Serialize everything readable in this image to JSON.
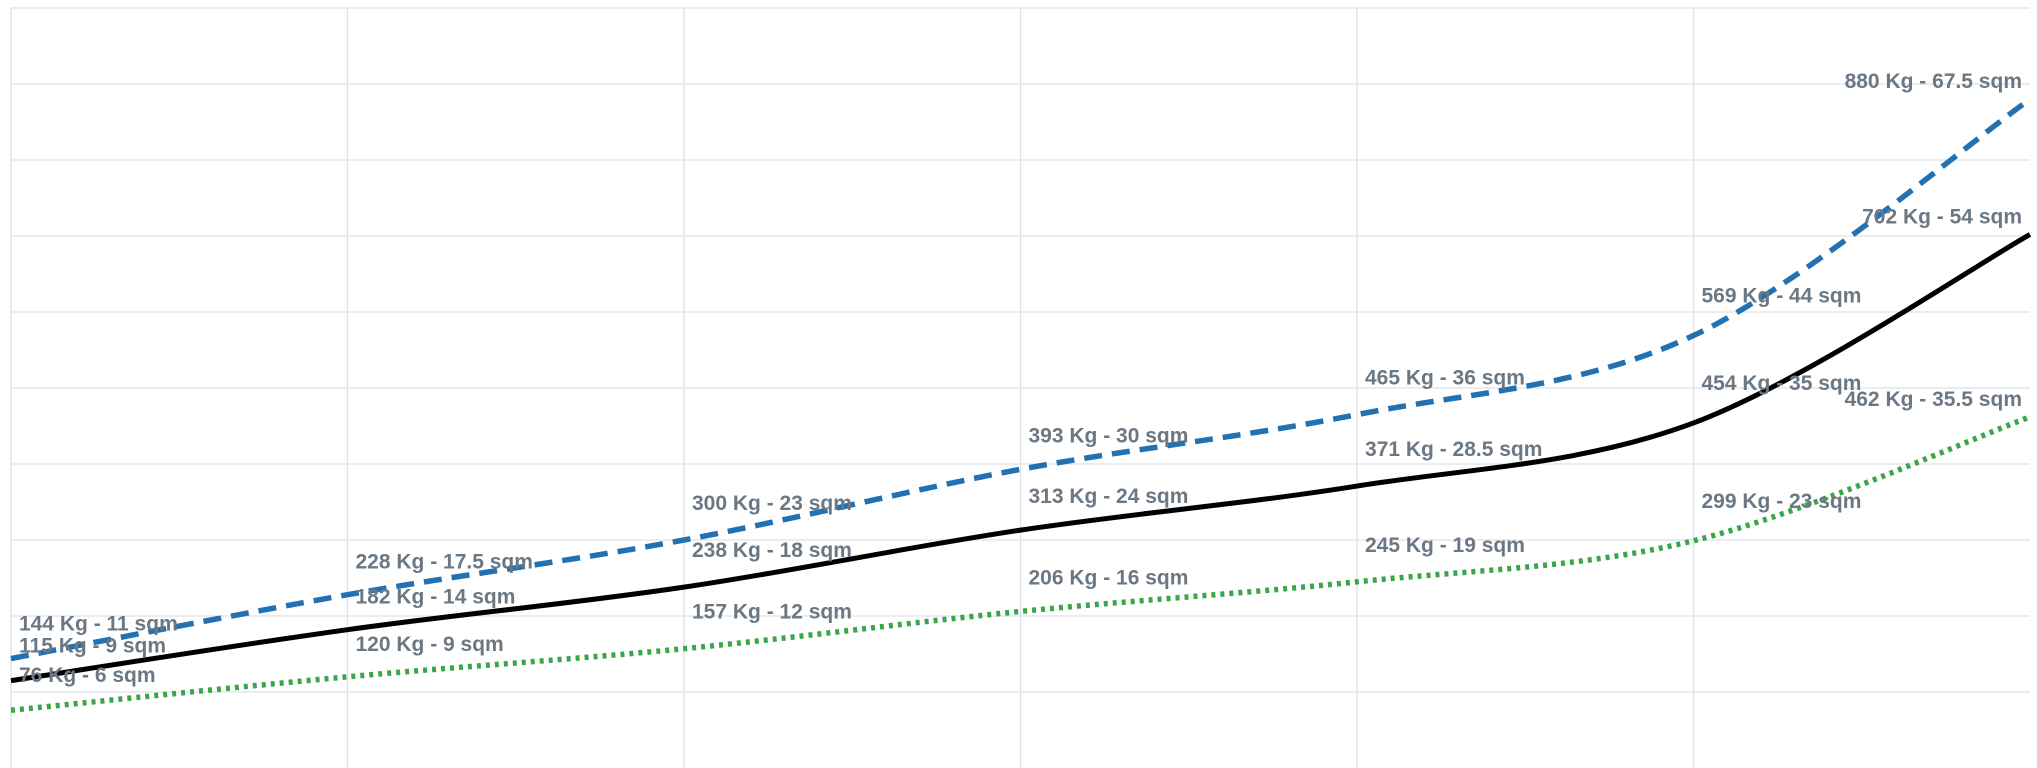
{
  "chart_data": {
    "type": "line",
    "grid": true,
    "legend": "none",
    "x": [
      0,
      1,
      2,
      3,
      4,
      5,
      6
    ],
    "xlim": [
      0,
      6
    ],
    "ylim": [
      0,
      1000
    ],
    "series": [
      {
        "color": "#2271b3",
        "style": "dashed",
        "y": [
          144,
          228,
          300,
          393,
          465,
          569,
          880
        ],
        "labels": [
          "144 Kg - 11 sqm",
          "228 Kg - 17.5 sqm",
          "300 Kg - 23 sqm",
          "393 Kg - 30 sqm",
          "465 Kg - 36 sqm",
          "569 Kg - 44 sqm",
          "880 Kg - 67.5 sqm"
        ]
      },
      {
        "color": "#000000",
        "style": "solid",
        "y": [
          115,
          182,
          238,
          313,
          371,
          454,
          702
        ],
        "labels": [
          "115 Kg - 9 sqm",
          "182 Kg - 14 sqm",
          "238 Kg - 18 sqm",
          "313 Kg - 24 sqm",
          "371 Kg - 28.5 sqm",
          "454 Kg - 35 sqm",
          "702 Kg - 54 sqm"
        ]
      },
      {
        "color": "#3aa64a",
        "style": "dotted",
        "y": [
          76,
          120,
          157,
          206,
          245,
          299,
          462
        ],
        "labels": [
          "76 Kg - 6 sqm",
          "120 Kg - 9 sqm",
          "157 Kg - 12 sqm",
          "206 Kg - 16 sqm",
          "245 Kg - 19 sqm",
          "299 Kg - 23 sqm",
          "462 Kg - 35.5 sqm"
        ]
      }
    ]
  }
}
